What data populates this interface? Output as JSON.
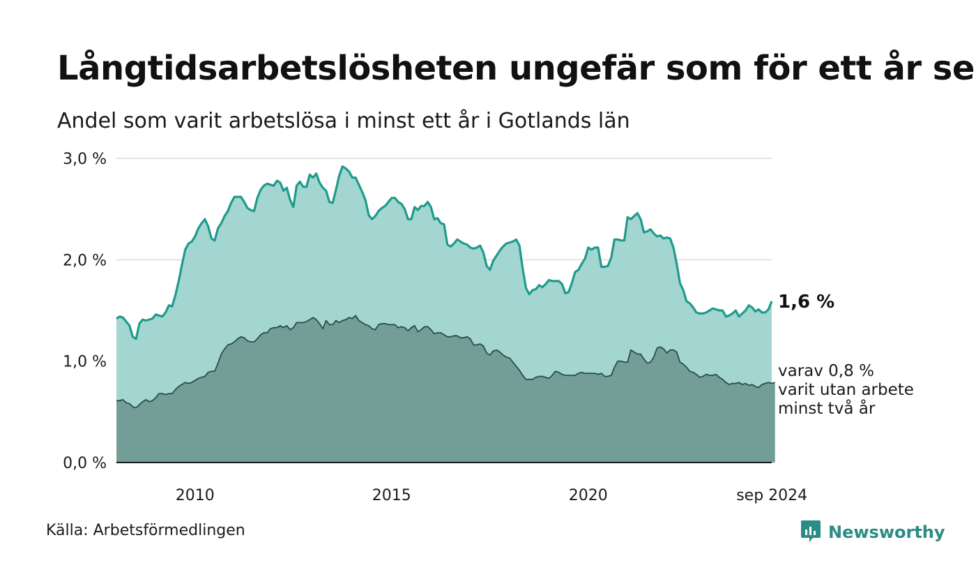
{
  "title": "Långtidsarbetslösheten ungefär som för ett år sen",
  "subtitle": "Andel som varit arbetslösa i minst ett år i Gotlands län",
  "source": "Källa: Arbetsförmedlingen",
  "brand": {
    "name": "Newsworthy",
    "icon": "newsworthy-logo-icon",
    "color": "#2a8c85"
  },
  "labels": {
    "latest_total": "1,6 %",
    "latest_sub": [
      "varav 0,8 %",
      "varit utan arbete",
      "minst två år"
    ]
  },
  "colors": {
    "total_line": "#1f9a8c",
    "total_fill": "#a3d6d0",
    "sub_line": "#2f4b48",
    "sub_fill": "#729e97",
    "grid": "#e3e3e3"
  },
  "chart_data": {
    "type": "area",
    "x_start": "2008-01",
    "x_end": "2024-09",
    "frequency": "monthly",
    "ylim": [
      0,
      3.0
    ],
    "yticks": [
      {
        "value": 0,
        "label": "0,0 %"
      },
      {
        "value": 1,
        "label": "1,0 %"
      },
      {
        "value": 2,
        "label": "2,0 %"
      },
      {
        "value": 3,
        "label": "3,0 %"
      }
    ],
    "xticks": [
      {
        "value": 2010.0,
        "label": "2010"
      },
      {
        "value": 2015.0,
        "label": "2015"
      },
      {
        "value": 2020.0,
        "label": "2020"
      },
      {
        "value": 2024.67,
        "label": "sep 2024"
      }
    ],
    "grid": true,
    "series": [
      {
        "key": "total",
        "values": [
          1.42,
          1.44,
          1.43,
          1.39,
          1.35,
          1.24,
          1.22,
          1.37,
          1.41,
          1.4,
          1.41,
          1.42,
          1.46,
          1.45,
          1.44,
          1.48,
          1.55,
          1.54,
          1.65,
          1.79,
          1.95,
          2.1,
          2.16,
          2.18,
          2.23,
          2.31,
          2.36,
          2.4,
          2.33,
          2.21,
          2.19,
          2.31,
          2.36,
          2.43,
          2.48,
          2.56,
          2.62,
          2.62,
          2.62,
          2.57,
          2.51,
          2.49,
          2.48,
          2.61,
          2.69,
          2.73,
          2.75,
          2.74,
          2.73,
          2.78,
          2.76,
          2.68,
          2.71,
          2.59,
          2.52,
          2.73,
          2.77,
          2.72,
          2.72,
          2.84,
          2.81,
          2.85,
          2.76,
          2.71,
          2.68,
          2.57,
          2.56,
          2.69,
          2.83,
          2.92,
          2.9,
          2.87,
          2.81,
          2.81,
          2.74,
          2.67,
          2.59,
          2.44,
          2.4,
          2.43,
          2.48,
          2.51,
          2.53,
          2.57,
          2.61,
          2.61,
          2.57,
          2.55,
          2.5,
          2.4,
          2.4,
          2.52,
          2.49,
          2.53,
          2.53,
          2.57,
          2.52,
          2.4,
          2.41,
          2.36,
          2.35,
          2.15,
          2.13,
          2.16,
          2.2,
          2.18,
          2.16,
          2.15,
          2.12,
          2.11,
          2.12,
          2.14,
          2.07,
          1.94,
          1.9,
          1.99,
          2.04,
          2.09,
          2.13,
          2.16,
          2.17,
          2.18,
          2.2,
          2.14,
          1.91,
          1.72,
          1.66,
          1.7,
          1.71,
          1.75,
          1.73,
          1.76,
          1.8,
          1.79,
          1.79,
          1.79,
          1.76,
          1.67,
          1.68,
          1.77,
          1.88,
          1.9,
          1.96,
          2.01,
          2.12,
          2.1,
          2.12,
          2.12,
          1.93,
          1.93,
          1.94,
          2.02,
          2.2,
          2.2,
          2.19,
          2.19,
          2.42,
          2.4,
          2.43,
          2.46,
          2.4,
          2.27,
          2.28,
          2.3,
          2.26,
          2.23,
          2.24,
          2.21,
          2.22,
          2.21,
          2.12,
          1.96,
          1.77,
          1.7,
          1.59,
          1.57,
          1.53,
          1.48,
          1.47,
          1.47,
          1.48,
          1.5,
          1.52,
          1.51,
          1.5,
          1.5,
          1.44,
          1.45,
          1.47,
          1.5,
          1.44,
          1.47,
          1.5,
          1.55,
          1.53,
          1.49,
          1.51,
          1.48,
          1.48,
          1.51,
          1.59
        ]
      },
      {
        "key": "two_years",
        "values": [
          0.61,
          0.61,
          0.62,
          0.59,
          0.58,
          0.55,
          0.54,
          0.57,
          0.6,
          0.62,
          0.6,
          0.61,
          0.64,
          0.68,
          0.68,
          0.67,
          0.68,
          0.68,
          0.72,
          0.75,
          0.77,
          0.79,
          0.78,
          0.79,
          0.81,
          0.83,
          0.84,
          0.85,
          0.89,
          0.9,
          0.9,
          0.98,
          1.07,
          1.12,
          1.16,
          1.17,
          1.19,
          1.22,
          1.24,
          1.23,
          1.2,
          1.19,
          1.19,
          1.22,
          1.26,
          1.28,
          1.28,
          1.32,
          1.33,
          1.33,
          1.35,
          1.33,
          1.35,
          1.31,
          1.33,
          1.38,
          1.38,
          1.38,
          1.39,
          1.41,
          1.43,
          1.41,
          1.37,
          1.32,
          1.4,
          1.36,
          1.36,
          1.4,
          1.38,
          1.4,
          1.41,
          1.43,
          1.42,
          1.45,
          1.4,
          1.38,
          1.36,
          1.35,
          1.32,
          1.31,
          1.36,
          1.37,
          1.37,
          1.36,
          1.36,
          1.36,
          1.33,
          1.34,
          1.33,
          1.3,
          1.33,
          1.35,
          1.29,
          1.31,
          1.34,
          1.34,
          1.31,
          1.27,
          1.28,
          1.28,
          1.26,
          1.24,
          1.24,
          1.25,
          1.25,
          1.23,
          1.23,
          1.24,
          1.22,
          1.16,
          1.16,
          1.17,
          1.15,
          1.08,
          1.06,
          1.1,
          1.11,
          1.09,
          1.06,
          1.04,
          1.03,
          0.99,
          0.95,
          0.91,
          0.86,
          0.82,
          0.82,
          0.82,
          0.84,
          0.85,
          0.85,
          0.84,
          0.83,
          0.86,
          0.9,
          0.89,
          0.87,
          0.86,
          0.86,
          0.86,
          0.86,
          0.88,
          0.89,
          0.88,
          0.88,
          0.88,
          0.88,
          0.87,
          0.88,
          0.85,
          0.85,
          0.86,
          0.94,
          1.0,
          1.0,
          0.99,
          0.99,
          1.11,
          1.09,
          1.07,
          1.07,
          1.02,
          0.98,
          0.99,
          1.04,
          1.13,
          1.14,
          1.12,
          1.08,
          1.11,
          1.11,
          1.09,
          0.99,
          0.97,
          0.94,
          0.9,
          0.89,
          0.87,
          0.84,
          0.85,
          0.87,
          0.86,
          0.86,
          0.87,
          0.84,
          0.82,
          0.79,
          0.77,
          0.78,
          0.78,
          0.79,
          0.77,
          0.78,
          0.76,
          0.77,
          0.75,
          0.74,
          0.77,
          0.78,
          0.79,
          0.78,
          0.79
        ]
      }
    ]
  }
}
